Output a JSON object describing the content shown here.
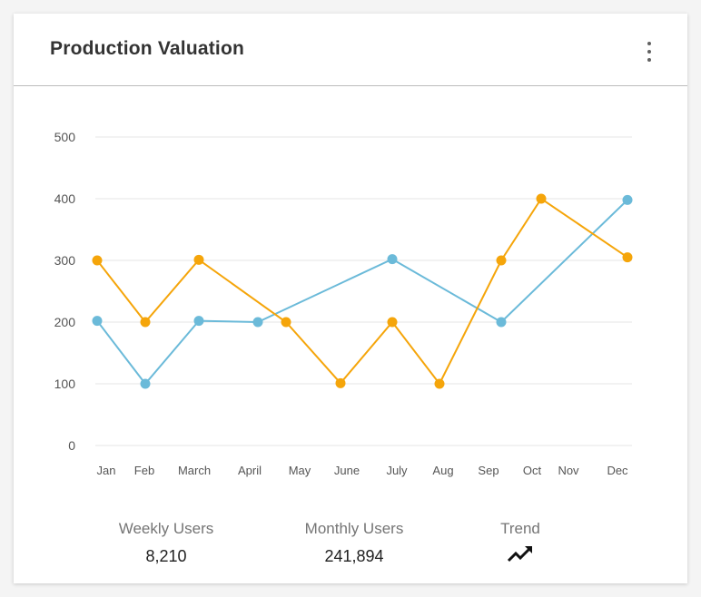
{
  "card": {
    "title": "Production Valuation"
  },
  "icons": {
    "menu": "kebab-menu-icon",
    "trend": "trending-up-icon"
  },
  "stats": [
    {
      "label": "Weekly Users",
      "value": "8,210"
    },
    {
      "label": "Monthly Users",
      "value": "241,894"
    },
    {
      "label": "Trend",
      "value": ""
    }
  ],
  "chart_data": {
    "type": "line",
    "title": "",
    "xlabel": "",
    "ylabel": "",
    "ylim": [
      0,
      500
    ],
    "yticks": [
      0,
      100,
      200,
      300,
      400,
      500
    ],
    "xticks": [
      "Jan",
      "Feb",
      "March",
      "April",
      "May",
      "June",
      "July",
      "Aug",
      "Sep",
      "Oct",
      "Nov",
      "Dec"
    ],
    "grid": true,
    "legend": "none",
    "series": [
      {
        "color": "#6bbad9",
        "points": [
          {
            "x": "Jan",
            "y": 202
          },
          {
            "x": "Feb",
            "y": 100
          },
          {
            "x": "March",
            "y": 202
          },
          {
            "x": "April",
            "y": 200
          },
          {
            "x": "July",
            "y": 302
          },
          {
            "x": "Sep",
            "y": 200
          },
          {
            "x": "Dec",
            "y": 398
          }
        ]
      },
      {
        "color": "#f5a50a",
        "points": [
          {
            "x": "Jan",
            "y": 300
          },
          {
            "x": "Feb",
            "y": 200
          },
          {
            "x": "March",
            "y": 301
          },
          {
            "x": "May",
            "y": 200
          },
          {
            "x": "June",
            "y": 101
          },
          {
            "x": "July",
            "y": 200
          },
          {
            "x": "Aug",
            "y": 100
          },
          {
            "x": "Sep",
            "y": 300
          },
          {
            "x": "Oct",
            "y": 400
          },
          {
            "x": "Dec",
            "y": 305
          }
        ]
      }
    ]
  }
}
